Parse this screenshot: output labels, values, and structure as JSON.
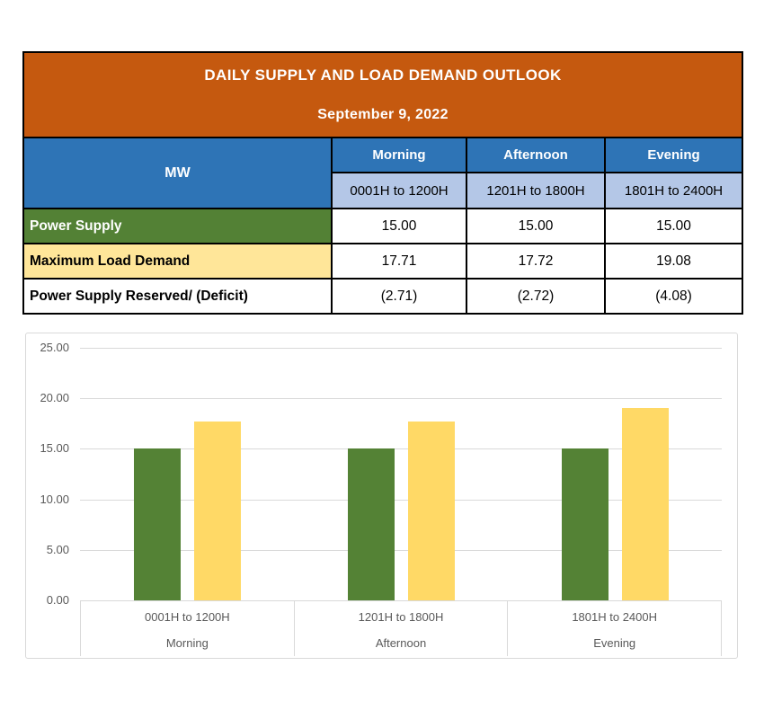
{
  "table": {
    "title": "DAILY SUPPLY AND LOAD DEMAND OUTLOOK",
    "date": "September 9, 2022",
    "unit_label": "MW",
    "columns": [
      {
        "period": "Morning",
        "range": "0001H to 1200H"
      },
      {
        "period": "Afternoon",
        "range": "1201H to 1800H"
      },
      {
        "period": "Evening",
        "range": "1801H to 2400H"
      }
    ],
    "rows": [
      {
        "label": "Power Supply",
        "values": [
          "15.00",
          "15.00",
          "15.00"
        ]
      },
      {
        "label": "Maximum Load Demand",
        "values": [
          "17.71",
          "17.72",
          "19.08"
        ]
      },
      {
        "label": "Power Supply Reserved/ (Deficit)",
        "values": [
          "(2.71)",
          "(2.72)",
          "(4.08)"
        ]
      }
    ]
  },
  "chart_data": {
    "type": "bar",
    "title": "",
    "categories": [
      "0001H to 1200H",
      "1201H to 1800H",
      "1801H to 2400H"
    ],
    "category_sublabels": [
      "Morning",
      "Afternoon",
      "Evening"
    ],
    "series": [
      {
        "name": "Power Supply",
        "color": "#548235",
        "values": [
          15.0,
          15.0,
          15.0
        ]
      },
      {
        "name": "Maximum Load Demand",
        "color": "#FFD966",
        "values": [
          17.71,
          17.72,
          19.08
        ]
      }
    ],
    "ylim": [
      0,
      25
    ],
    "ytick_step": 5,
    "ytick_labels": [
      "25.00",
      "20.00",
      "15.00",
      "10.00",
      "5.00",
      "0.00"
    ],
    "grid": true,
    "legend": "none"
  },
  "colors": {
    "header_orange": "#C5590F",
    "header_blue": "#2E74B6",
    "subheader_blue": "#B4C7E7",
    "row_green": "#538135",
    "row_yellow": "#FFE699",
    "bar_green": "#548235",
    "bar_yellow": "#FFD966",
    "axis_text": "#595959",
    "gridline": "#D9D9D9",
    "table_border": "#000000"
  }
}
